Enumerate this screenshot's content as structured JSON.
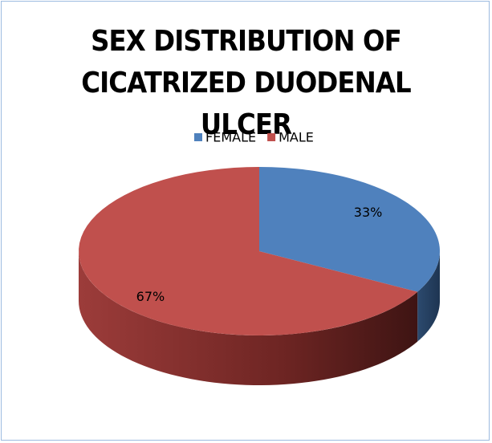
{
  "chart_data": {
    "type": "pie",
    "title": "SEX DISTRIBUTION OF CICATRIZED DUODENAL ULCER",
    "categories": [
      "FEMALE",
      "MALE"
    ],
    "values": [
      33,
      67
    ],
    "value_labels": [
      "33%",
      "67%"
    ],
    "colors": [
      "#4f81bd",
      "#c0504d"
    ],
    "legend": "top"
  }
}
